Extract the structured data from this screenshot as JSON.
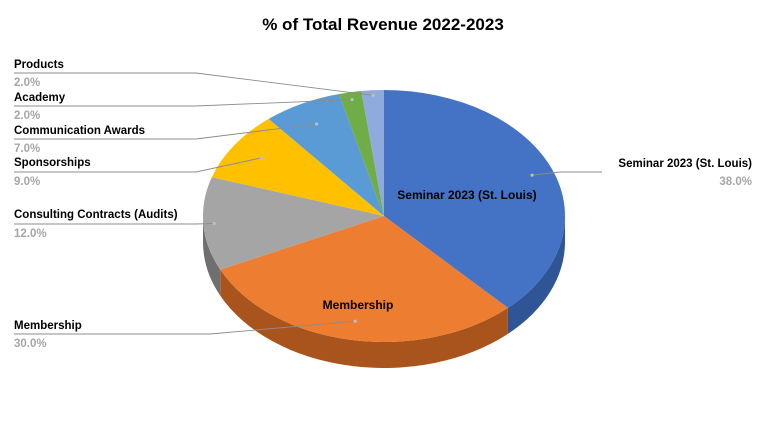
{
  "chart_data": {
    "type": "pie",
    "title": "% of Total Revenue 2022-2023",
    "categories": [
      "Seminar 2023 (St. Louis)",
      "Membership",
      "Consulting Contracts (Audits)",
      "Sponsorships",
      "Communication Awards",
      "Academy",
      "Products"
    ],
    "values": [
      38.0,
      30.0,
      12.0,
      9.0,
      7.0,
      2.0,
      2.0
    ],
    "value_labels": [
      "38.0%",
      "30.0%",
      "12.0%",
      "9.0%",
      "7.0%",
      "2.0%",
      "2.0%"
    ],
    "colors": [
      "#4472c4",
      "#ed7d31",
      "#a5a5a5",
      "#ffc000",
      "#5b9bd5",
      "#70ad47",
      "#8faadc"
    ],
    "side_colors": [
      "#2f5597",
      "#a9541c",
      "#6f6f6f",
      "#b38900",
      "#3f75a8",
      "#4e7a32",
      "#6a84b3"
    ],
    "inner_labels": [
      "Seminar 2023 (St. Louis)",
      "Membership"
    ],
    "style": "3d",
    "legend": "none"
  }
}
